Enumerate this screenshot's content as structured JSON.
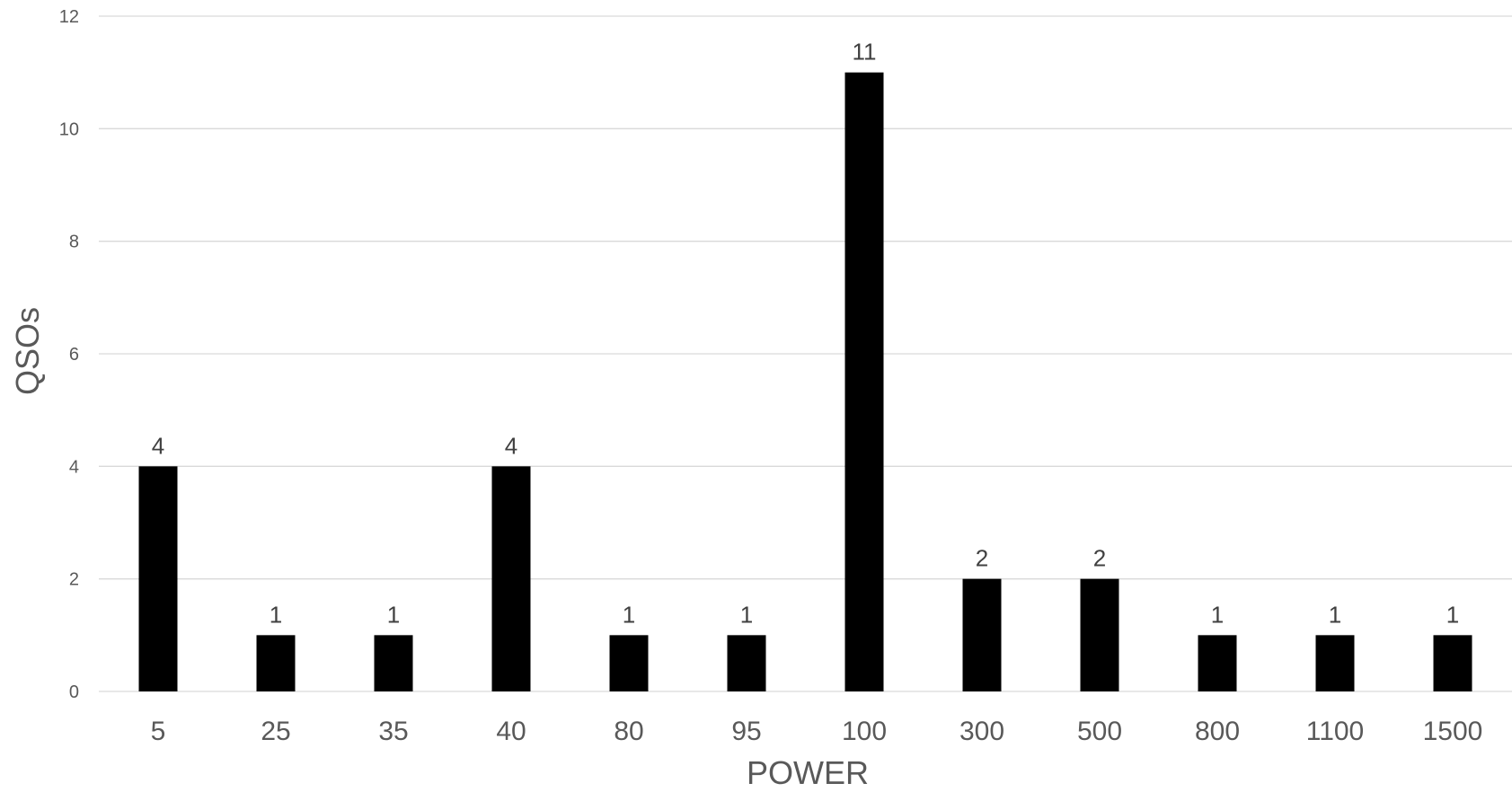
{
  "chart_data": {
    "type": "bar",
    "title": "",
    "xlabel": "POWER",
    "ylabel": "QSOs",
    "categories": [
      "5",
      "25",
      "35",
      "40",
      "80",
      "95",
      "100",
      "300",
      "500",
      "800",
      "1100",
      "1500"
    ],
    "values": [
      4,
      1,
      1,
      4,
      1,
      1,
      11,
      2,
      2,
      1,
      1,
      1
    ],
    "data_labels": [
      "4",
      "1",
      "1",
      "4",
      "1",
      "1",
      "11",
      "2",
      "2",
      "1",
      "1",
      "1"
    ],
    "ylim": [
      0,
      12
    ],
    "yticks": [
      0,
      2,
      4,
      6,
      8,
      10,
      12
    ],
    "grid": true,
    "legend": "none",
    "bar_color": "#000000"
  }
}
